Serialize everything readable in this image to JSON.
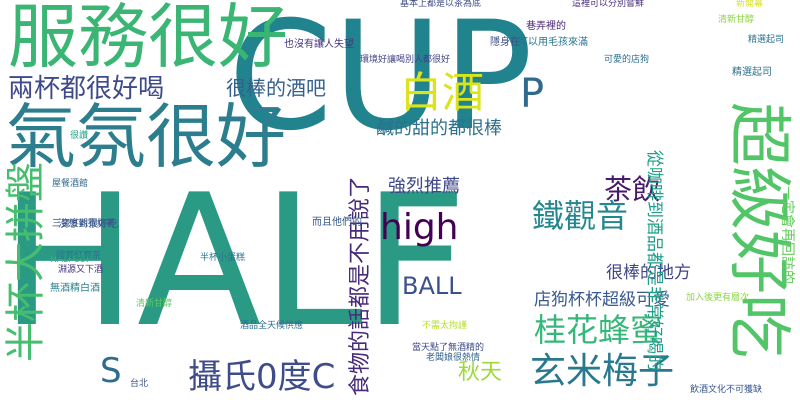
{
  "word_cloud": {
    "words": [
      {
        "text": "HALF",
        "color": "#2a9a85"
      },
      {
        "text": "CUP",
        "color": "#21838d"
      },
      {
        "text": "服務很好",
        "color": "#3ab573"
      },
      {
        "text": "氣氛很好",
        "color": "#2c7e8e"
      },
      {
        "text": "超級好吃",
        "color": "#52c569"
      },
      {
        "text": "半杯大拼盤",
        "color": "#46be6e"
      },
      {
        "text": "兩杯都很好喝",
        "color": "#3e4a89"
      },
      {
        "text": "很棒的酒吧",
        "color": "#35608d"
      },
      {
        "text": "白酒",
        "color": "#dbe31d"
      },
      {
        "text": "P",
        "color": "#30698e"
      },
      {
        "text": "鹹的甜的都很棒",
        "color": "#2d718e"
      },
      {
        "text": "強烈推薦",
        "color": "#3f4889"
      },
      {
        "text": "茶飲",
        "color": "#481a6c"
      },
      {
        "text": "high",
        "color": "#440154"
      },
      {
        "text": "鐵觀音",
        "color": "#24868e"
      },
      {
        "text": "BALL",
        "color": "#3b518b"
      },
      {
        "text": "很棒的地方",
        "color": "#404588"
      },
      {
        "text": "店狗杯杯超級可愛",
        "color": "#38598c"
      },
      {
        "text": "桂花蜂蜜",
        "color": "#35b779"
      },
      {
        "text": "玄米梅子",
        "color": "#2a788e"
      },
      {
        "text": "攝氏0度C",
        "color": "#3e4c8a"
      },
      {
        "text": "秋天",
        "color": "#9dd93b"
      },
      {
        "text": "S",
        "color": "#2f6b8e"
      },
      {
        "text": "食物的話都是不用說了",
        "color": "#472a7a"
      },
      {
        "text": "從咖啡到酒品都是非常好喝的",
        "color": "#1f9e89"
      },
      {
        "text": "一定會再回訪的",
        "color": "#65cb5e"
      },
      {
        "text": "環境好讓喝別人都很好",
        "color": "#404387"
      },
      {
        "text": "也沒有讓人失望",
        "color": "#453781"
      },
      {
        "text": "隱身在",
        "color": "#3d4e8a"
      },
      {
        "text": "可以用毛孩來滿",
        "color": "#2a768e"
      },
      {
        "text": "巷弄裡的",
        "color": "#482374"
      },
      {
        "text": "精選起司",
        "color": "#2c738e"
      },
      {
        "text": "可愛的店狗",
        "color": "#2e6e8e"
      },
      {
        "text": "清新甘醇",
        "color": "#8bd646"
      },
      {
        "text": "很讚",
        "color": "#1fa187"
      },
      {
        "text": "沒想到很好吃",
        "color": "#355f8d"
      },
      {
        "text": "半杯小蛋糕",
        "color": "#2c728e"
      },
      {
        "text": "而且他們的",
        "color": "#38598c"
      },
      {
        "text": "不需太拘謹",
        "color": "#b5de2b"
      },
      {
        "text": "老闆娘很熱情",
        "color": "#32648e"
      },
      {
        "text": "當天點了無酒精的",
        "color": "#3e4989"
      },
      {
        "text": "無酒精白酒",
        "color": "#26828e"
      },
      {
        "text": "HALFCUP",
        "color": "#31b57b"
      },
      {
        "text": "台北",
        "color": "#3b528b"
      },
      {
        "text": "飲酒文化不可獲缺",
        "color": "#39568c"
      },
      {
        "text": "國寶紅寶茶",
        "color": "#2b758e"
      },
      {
        "text": "淵源又下酒",
        "color": "#46307e"
      },
      {
        "text": "屋餐酒館",
        "color": "#31688e"
      },
      {
        "text": "三寶宴觀賽總著",
        "color": "#3b518b"
      },
      {
        "text": "酒品全天候供應",
        "color": "#2e6d8e"
      },
      {
        "text": "加入後更有層次",
        "color": "#8bd646"
      },
      {
        "text": "基本上都是以茶為底",
        "color": "#3e4a89"
      },
      {
        "text": "這裡可以分別嘗鮮",
        "color": "#472d7b"
      },
      {
        "text": "新開幕",
        "color": "#d8e219"
      },
      {
        "text": "清新甘醇",
        "color": "#5ec962"
      },
      {
        "text": "精選起司",
        "color": "#2c738e"
      }
    ]
  }
}
